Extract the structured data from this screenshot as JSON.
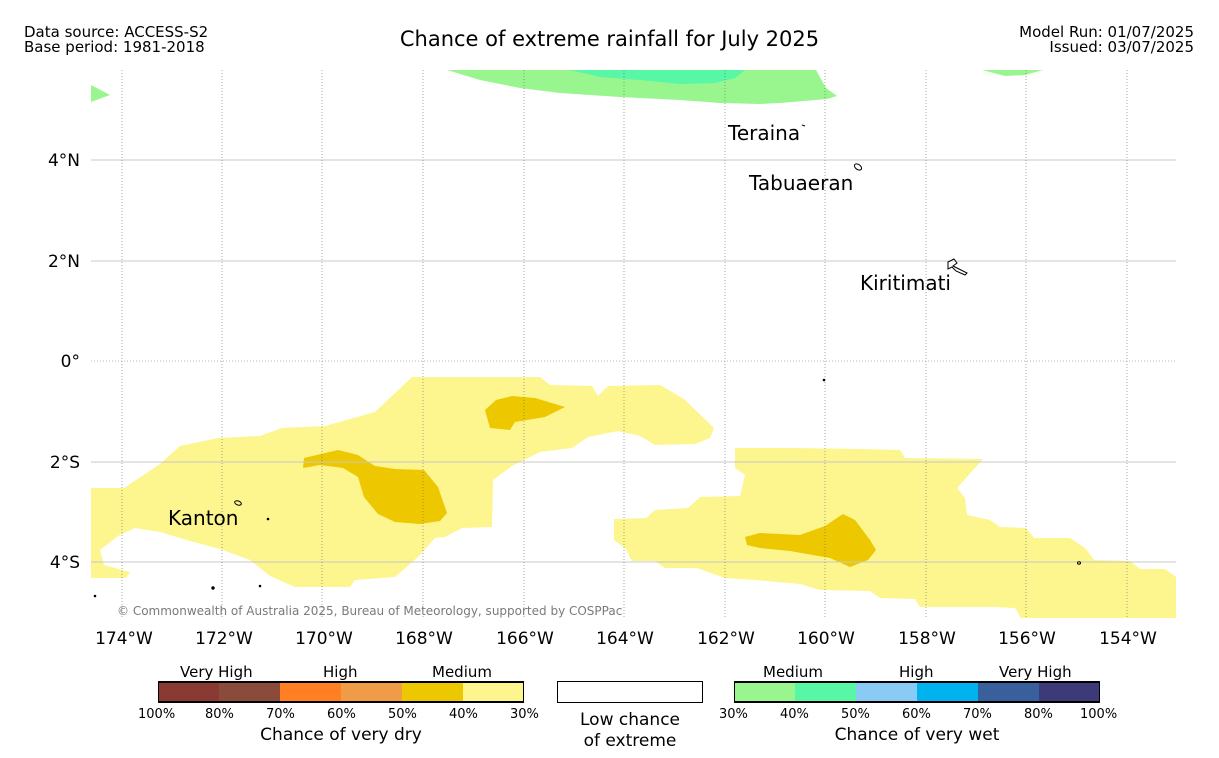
{
  "header": {
    "source_line": "Data source: ACCESS-S2",
    "base_line": "Base period: 1981-2018",
    "title": "Chance of extreme rainfall for July 2025",
    "model_run": "Model Run: 01/07/2025",
    "issued": "Issued: 03/07/2025"
  },
  "map": {
    "lon_labels": [
      "174°W",
      "172°W",
      "170°W",
      "168°W",
      "166°W",
      "164°W",
      "162°W",
      "160°W",
      "158°W",
      "156°W",
      "154°W"
    ],
    "lat_labels": [
      "4°N",
      "2°N",
      "0°",
      "2°S",
      "4°S"
    ],
    "places": {
      "teraina": "Teraina",
      "tabuaeran": "Tabuaeran",
      "kiritimati": "Kiritimati",
      "kanton": "Kanton"
    },
    "credit": "© Commonwealth of Australia 2025, Bureau of Meteorology, supported by COSPPac",
    "colors": {
      "dry_medium_light": "#fdf58e",
      "dry_medium_dark": "#edc700",
      "wet_medium_light": "#99f58e",
      "wet_medium_dark": "#58f7a5"
    }
  },
  "legend": {
    "dry": {
      "categories": [
        "Very High",
        "High",
        "Medium"
      ],
      "ticks": [
        "100%",
        "80%",
        "70%",
        "60%",
        "50%",
        "40%",
        "30%"
      ],
      "colors": [
        "#8b3a33",
        "#8a4b3a",
        "#ff7f22",
        "#ef9b48",
        "#edc700",
        "#fdf58e"
      ],
      "caption": "Chance of very dry"
    },
    "low": {
      "line1": "Low chance",
      "line2": "of extreme"
    },
    "wet": {
      "categories": [
        "Medium",
        "High",
        "Very High"
      ],
      "ticks": [
        "30%",
        "40%",
        "50%",
        "60%",
        "70%",
        "80%",
        "100%"
      ],
      "colors": [
        "#99f58e",
        "#58f7a5",
        "#8acbf5",
        "#00b2ee",
        "#37609c",
        "#3c3a78"
      ],
      "caption": "Chance of very wet"
    }
  }
}
